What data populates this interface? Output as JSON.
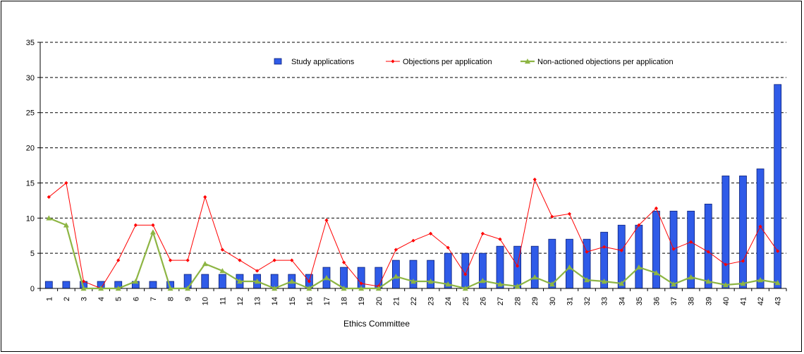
{
  "chart_data": {
    "type": "bar",
    "xlabel": "Ethics Committee",
    "ylabel": "",
    "ylim": [
      0,
      35
    ],
    "yticks": [
      0,
      5,
      10,
      15,
      20,
      25,
      30,
      35
    ],
    "grid": "horizontal-dashed",
    "legend_position": "top",
    "categories": [
      "1",
      "2",
      "3",
      "4",
      "5",
      "6",
      "7",
      "8",
      "9",
      "10",
      "11",
      "12",
      "13",
      "14",
      "15",
      "16",
      "17",
      "18",
      "19",
      "20",
      "21",
      "22",
      "23",
      "24",
      "25",
      "26",
      "27",
      "28",
      "29",
      "30",
      "31",
      "32",
      "33",
      "34",
      "35",
      "36",
      "37",
      "38",
      "39",
      "40",
      "41",
      "42",
      "43"
    ],
    "series": [
      {
        "name": "Study applications",
        "kind": "bar",
        "color": "#2f5be8",
        "values": [
          1,
          1,
          1,
          1,
          1,
          1,
          1,
          1,
          2,
          2,
          2,
          2,
          2,
          2,
          2,
          2,
          3,
          3,
          3,
          3,
          4,
          4,
          4,
          5,
          5,
          5,
          6,
          6,
          6,
          7,
          7,
          7,
          8,
          9,
          9,
          11,
          11,
          11,
          12,
          16,
          16,
          17,
          29
        ]
      },
      {
        "name": "Objections per application",
        "kind": "line",
        "color": "#ff0000",
        "marker": "diamond",
        "values": [
          13,
          15,
          1,
          0,
          4,
          9,
          9,
          4,
          4,
          13,
          5.5,
          4,
          2.5,
          4,
          4,
          1,
          9.7,
          3.7,
          0.7,
          0.3,
          5.5,
          6.8,
          7.8,
          5.8,
          2,
          7.8,
          7,
          3.2,
          15.5,
          10.2,
          10.6,
          5.2,
          5.9,
          5.4,
          9,
          11.4,
          5.6,
          6.6,
          5.2,
          3.4,
          3.9,
          8.8,
          5.3
        ]
      },
      {
        "name": "Non-actioned objections per application",
        "kind": "line",
        "color": "#8db543",
        "marker": "triangle",
        "values": [
          10,
          9,
          0,
          0,
          0,
          1,
          8,
          0,
          0,
          3.5,
          2.5,
          1,
          1,
          0,
          1,
          0,
          1.5,
          0,
          0,
          0,
          1.7,
          1,
          1,
          0.6,
          0,
          1.1,
          0.6,
          0.3,
          1.6,
          0.6,
          3,
          1.2,
          1,
          0.7,
          3,
          2.2,
          0.6,
          1.6,
          1,
          0.5,
          0.7,
          1.2,
          0.8
        ]
      }
    ]
  }
}
